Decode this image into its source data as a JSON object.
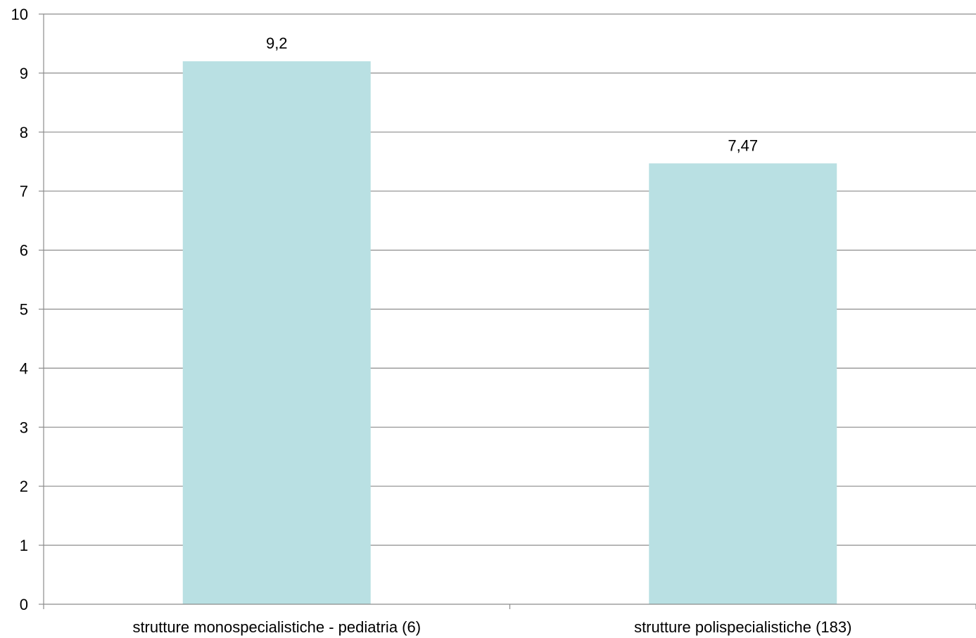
{
  "chart_data": {
    "type": "bar",
    "categories": [
      "strutture monospecialistiche - pediatria (6)",
      "strutture polispecialistiche (183)"
    ],
    "values": [
      9.2,
      7.47
    ],
    "data_labels": [
      "9,2",
      "7,47"
    ],
    "ylim": [
      0,
      10
    ],
    "yticks": [
      0,
      1,
      2,
      3,
      4,
      5,
      6,
      7,
      8,
      9,
      10
    ],
    "ytick_labels": [
      "0",
      "1",
      "2",
      "3",
      "4",
      "5",
      "6",
      "7",
      "8",
      "9",
      "10"
    ],
    "grid": true,
    "legend": "none",
    "colors": {
      "bar": "#b9e0e3",
      "grid": "#8c8c8c",
      "axis": "#8c8c8c",
      "text": "#000000"
    }
  }
}
